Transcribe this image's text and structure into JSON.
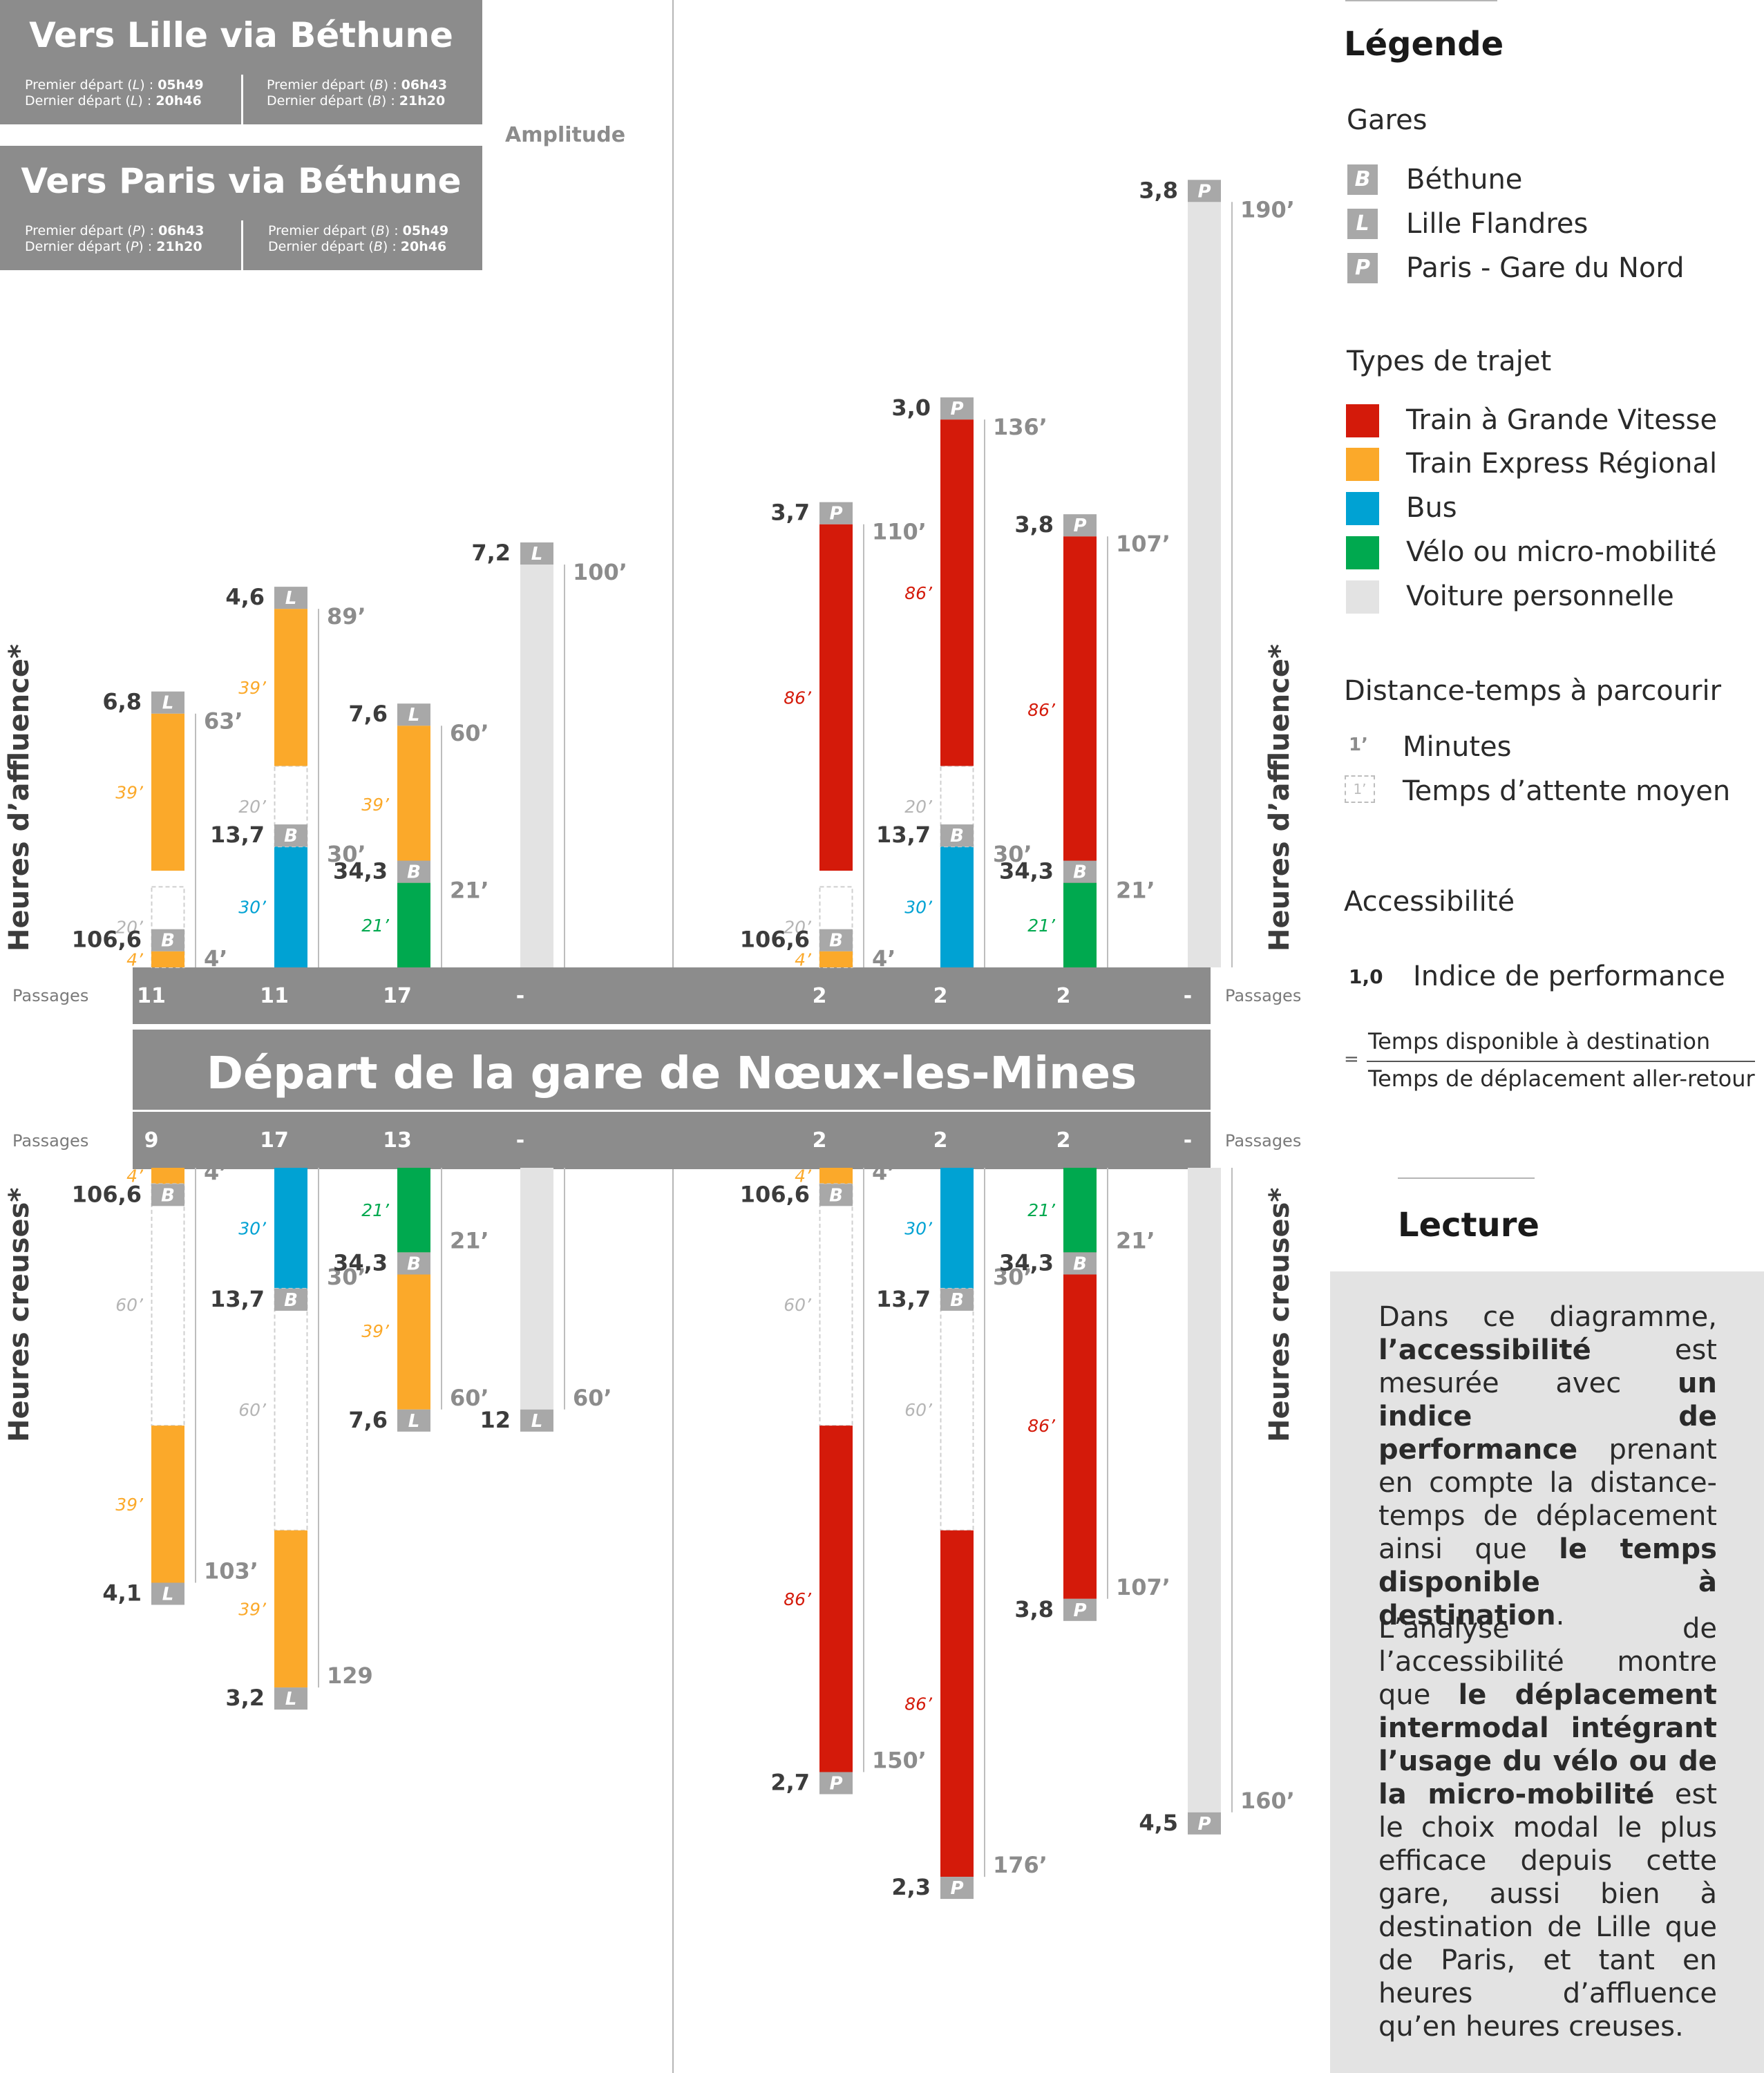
{
  "header_lille": {
    "title": "Vers Lille via Béthune",
    "left_line1_prefix": "Premier départ (",
    "left_line1_station": "L",
    "left_line1_suffix": ") : ",
    "left_line1_time": "05h49",
    "left_line2_prefix": "Dernier départ (",
    "left_line2_station": "L",
    "left_line2_suffix": ") : ",
    "left_line2_time": "20h46",
    "right_line1_prefix": "Premier départ (",
    "right_line1_station": "B",
    "right_line1_suffix": ") : ",
    "right_line1_time": "06h43",
    "right_line2_prefix": "Dernier départ (",
    "right_line2_station": "B",
    "right_line2_suffix": ") : ",
    "right_line2_time": "21h20"
  },
  "header_paris": {
    "title": "Vers Paris via Béthune",
    "left_line1_prefix": "Premier départ (",
    "left_line1_station": "P",
    "left_line1_suffix": ") : ",
    "left_line1_time": "06h43",
    "left_line2_prefix": "Dernier départ (",
    "left_line2_station": "P",
    "left_line2_suffix": ") : ",
    "left_line2_time": "21h20",
    "right_line1_prefix": "Premier départ (",
    "right_line1_station": "B",
    "right_line1_suffix": ") : ",
    "right_line1_time": "05h49",
    "right_line2_prefix": "Dernier départ (",
    "right_line2_station": "B",
    "right_line2_suffix": ") : ",
    "right_line2_time": "20h46"
  },
  "amplitude_label": "Amplitude",
  "center_title": "Départ de la gare de Nœux-les-Mines",
  "passages_label": "Passages",
  "side_labels": {
    "peak": "Heures d’affluence*",
    "offpeak": "Heures creuses*"
  },
  "passages_top": [
    "11",
    "11",
    "17",
    "-",
    "2",
    "2",
    "2",
    "-"
  ],
  "passages_bottom": [
    "9",
    "17",
    "13",
    "-",
    "2",
    "2",
    "2",
    "-"
  ],
  "colors": {
    "tgv": "#d41a0a",
    "ter": "#fba92a",
    "bus": "#00a2d3",
    "velo": "#00a94f",
    "voiture": "#e3e3e3",
    "station": "#a8a8a8",
    "band": "#8c8c8c"
  },
  "legend": {
    "title": "Légende",
    "gares_title": "Gares",
    "gares": [
      {
        "code": "B",
        "label": "Béthune"
      },
      {
        "code": "L",
        "label": "Lille Flandres"
      },
      {
        "code": "P",
        "label": "Paris - Gare du Nord"
      }
    ],
    "types_title": "Types de trajet",
    "types": [
      {
        "label": "Train à Grande Vitesse",
        "color": "#d41a0a"
      },
      {
        "label": "Train Express Régional",
        "color": "#fba92a"
      },
      {
        "label": "Bus",
        "color": "#00a2d3"
      },
      {
        "label": "Vélo ou micro-mobilité",
        "color": "#00a94f"
      },
      {
        "label": "Voiture personnelle",
        "color": "#e3e3e3"
      }
    ],
    "distance_title": "Distance-temps à parcourir",
    "minutes_sample": "1’",
    "minutes_label": "Minutes",
    "wait_sample": "1’",
    "wait_label": "Temps d’attente moyen",
    "access_title": "Accessibilité",
    "index_sample": "1,0",
    "index_label": "Indice de performance",
    "eq": "=",
    "numerator": "Temps disponible à destination",
    "denominator": "Temps de déplacement aller-retour"
  },
  "lecture": {
    "title": "Lecture",
    "p1_a": "Dans ce diagramme, ",
    "p1_b": "l’accessibilité",
    "p1_c": " est mesurée avec ",
    "p1_d": "un indice de performance",
    "p1_e": " prenant en compte la distance-temps de déplacement ainsi que ",
    "p1_f": "le temps disponible à destination",
    "p1_g": ".",
    "p2_a": "L’analyse de l’accessibilité montre que ",
    "p2_b": "le déplacement intermodal intégrant l’usage du vélo ou de la micro-mobilité",
    "p2_c": " est le choix modal le plus efficace depuis cette gare, aussi bien à destination de Lille que de Paris, et tant en heures d’affluence qu’en heures creuses."
  },
  "chart_data": {
    "type": "table",
    "top_columns": [
      {
        "bars": [
          {
            "kind": "wait",
            "from": 0,
            "to": 20,
            "label": "20’"
          },
          {
            "kind": "ter",
            "from": 0,
            "to": 4,
            "label": "4’"
          },
          {
            "kind": "ter",
            "from": 24,
            "to": 63,
            "label": "39’"
          }
        ],
        "stations": [
          {
            "code": "B",
            "at": 4,
            "index": "106,6"
          },
          {
            "code": "L",
            "at": 63,
            "index": "6,8"
          }
        ],
        "totals": [
          {
            "at": 4,
            "label": "4’"
          },
          {
            "at": 63,
            "label": "63’"
          }
        ]
      },
      {
        "bars": [
          {
            "kind": "bus",
            "from": 0,
            "to": 30,
            "label": "30’"
          },
          {
            "kind": "wait",
            "from": 30,
            "to": 50,
            "label": "20’"
          },
          {
            "kind": "ter",
            "from": 50,
            "to": 89,
            "label": "39’"
          }
        ],
        "stations": [
          {
            "code": "B",
            "at": 30,
            "index": "13,7"
          },
          {
            "code": "L",
            "at": 89,
            "index": "4,6"
          }
        ],
        "totals": [
          {
            "at": 30,
            "label": "30’"
          },
          {
            "at": 89,
            "label": "89’"
          }
        ]
      },
      {
        "bars": [
          {
            "kind": "velo",
            "from": 0,
            "to": 21,
            "label": "21’"
          },
          {
            "kind": "ter",
            "from": 21,
            "to": 60,
            "label": "39’"
          }
        ],
        "stations": [
          {
            "code": "B",
            "at": 21,
            "index": "34,3"
          },
          {
            "code": "L",
            "at": 60,
            "index": "7,6"
          }
        ],
        "totals": [
          {
            "at": 21,
            "label": "21’"
          },
          {
            "at": 60,
            "label": "60’"
          }
        ]
      },
      {
        "bars": [
          {
            "kind": "voiture",
            "from": 0,
            "to": 100
          }
        ],
        "stations": [
          {
            "code": "L",
            "at": 100,
            "index": "7,2"
          }
        ],
        "totals": [
          {
            "at": 100,
            "label": "100’"
          }
        ]
      },
      {
        "bars": [
          {
            "kind": "wait",
            "from": 0,
            "to": 20,
            "label": "20’"
          },
          {
            "kind": "ter",
            "from": 0,
            "to": 4,
            "label": "4’"
          },
          {
            "kind": "tgv",
            "from": 24,
            "to": 110,
            "label": "86’"
          }
        ],
        "stations": [
          {
            "code": "B",
            "at": 4,
            "index": "106,6"
          },
          {
            "code": "P",
            "at": 110,
            "index": "3,7"
          }
        ],
        "totals": [
          {
            "at": 4,
            "label": "4’"
          },
          {
            "at": 110,
            "label": "110’"
          }
        ]
      },
      {
        "bars": [
          {
            "kind": "bus",
            "from": 0,
            "to": 30,
            "label": "30’"
          },
          {
            "kind": "wait",
            "from": 30,
            "to": 50,
            "label": "20’"
          },
          {
            "kind": "tgv",
            "from": 50,
            "to": 136,
            "label": "86’"
          }
        ],
        "stations": [
          {
            "code": "B",
            "at": 30,
            "index": "13,7"
          },
          {
            "code": "P",
            "at": 136,
            "index": "3,0"
          }
        ],
        "totals": [
          {
            "at": 30,
            "label": "30’"
          },
          {
            "at": 136,
            "label": "136’"
          }
        ]
      },
      {
        "bars": [
          {
            "kind": "velo",
            "from": 0,
            "to": 21,
            "label": "21’"
          },
          {
            "kind": "tgv",
            "from": 21,
            "to": 107,
            "label": "86’"
          }
        ],
        "stations": [
          {
            "code": "B",
            "at": 21,
            "index": "34,3"
          },
          {
            "code": "P",
            "at": 107,
            "index": "3,8"
          }
        ],
        "totals": [
          {
            "at": 21,
            "label": "21’"
          },
          {
            "at": 107,
            "label": "107’"
          }
        ]
      },
      {
        "bars": [
          {
            "kind": "voiture",
            "from": 0,
            "to": 190
          }
        ],
        "stations": [
          {
            "code": "P",
            "at": 190,
            "index": "3,8"
          }
        ],
        "totals": [
          {
            "at": 190,
            "label": "190’"
          }
        ]
      }
    ],
    "bottom_columns": [
      {
        "bars": [
          {
            "kind": "ter",
            "from": 0,
            "to": 4,
            "label": "4’"
          },
          {
            "kind": "wait",
            "from": 4,
            "to": 64,
            "label": "60’"
          },
          {
            "kind": "ter",
            "from": 64,
            "to": 103,
            "label": "39’"
          }
        ],
        "stations": [
          {
            "code": "B",
            "at": 4,
            "index": "106,6"
          },
          {
            "code": "L",
            "at": 103,
            "index": "4,1"
          }
        ],
        "totals": [
          {
            "at": 4,
            "label": "4’"
          },
          {
            "at": 103,
            "label": "103’"
          }
        ]
      },
      {
        "bars": [
          {
            "kind": "bus",
            "from": 0,
            "to": 30,
            "label": "30’"
          },
          {
            "kind": "wait",
            "from": 30,
            "to": 90,
            "label": "60’"
          },
          {
            "kind": "ter",
            "from": 90,
            "to": 129,
            "label": "39’"
          }
        ],
        "stations": [
          {
            "code": "B",
            "at": 30,
            "index": "13,7"
          },
          {
            "code": "L",
            "at": 129,
            "index": "3,2"
          }
        ],
        "totals": [
          {
            "at": 30,
            "label": "30’"
          },
          {
            "at": 129,
            "label": "129"
          }
        ]
      },
      {
        "bars": [
          {
            "kind": "velo",
            "from": 0,
            "to": 21,
            "label": "21’"
          },
          {
            "kind": "ter",
            "from": 21,
            "to": 60,
            "label": "39’"
          }
        ],
        "stations": [
          {
            "code": "B",
            "at": 21,
            "index": "34,3"
          },
          {
            "code": "L",
            "at": 60,
            "index": "7,6"
          }
        ],
        "totals": [
          {
            "at": 21,
            "label": "21’"
          },
          {
            "at": 60,
            "label": "60’"
          }
        ]
      },
      {
        "bars": [
          {
            "kind": "voiture",
            "from": 0,
            "to": 60
          }
        ],
        "stations": [
          {
            "code": "L",
            "at": 60,
            "index": "12"
          }
        ],
        "totals": [
          {
            "at": 60,
            "label": "60’"
          }
        ]
      },
      {
        "bars": [
          {
            "kind": "ter",
            "from": 0,
            "to": 4,
            "label": "4’"
          },
          {
            "kind": "wait",
            "from": 4,
            "to": 64,
            "label": "60’"
          },
          {
            "kind": "tgv",
            "from": 64,
            "to": 150,
            "label": "86’"
          }
        ],
        "stations": [
          {
            "code": "B",
            "at": 4,
            "index": "106,6"
          },
          {
            "code": "P",
            "at": 150,
            "index": "2,7"
          }
        ],
        "totals": [
          {
            "at": 4,
            "label": "4’"
          },
          {
            "at": 150,
            "label": "150’"
          }
        ]
      },
      {
        "bars": [
          {
            "kind": "bus",
            "from": 0,
            "to": 30,
            "label": "30’"
          },
          {
            "kind": "wait",
            "from": 30,
            "to": 90,
            "label": "60’"
          },
          {
            "kind": "tgv",
            "from": 90,
            "to": 176,
            "label": "86’"
          }
        ],
        "stations": [
          {
            "code": "B",
            "at": 30,
            "index": "13,7"
          },
          {
            "code": "P",
            "at": 176,
            "index": "2,3"
          }
        ],
        "totals": [
          {
            "at": 30,
            "label": "30’"
          },
          {
            "at": 176,
            "label": "176’"
          }
        ]
      },
      {
        "bars": [
          {
            "kind": "velo",
            "from": 0,
            "to": 21,
            "label": "21’"
          },
          {
            "kind": "tgv",
            "from": 21,
            "to": 107,
            "label": "86’"
          }
        ],
        "stations": [
          {
            "code": "B",
            "at": 21,
            "index": "34,3"
          },
          {
            "code": "P",
            "at": 107,
            "index": "3,8"
          }
        ],
        "totals": [
          {
            "at": 21,
            "label": "21’"
          },
          {
            "at": 107,
            "label": "107’"
          }
        ]
      },
      {
        "bars": [
          {
            "kind": "voiture",
            "from": 0,
            "to": 160
          }
        ],
        "stations": [
          {
            "code": "P",
            "at": 160,
            "index": "4,5"
          }
        ],
        "totals": [
          {
            "at": 160,
            "label": "160’"
          }
        ]
      }
    ]
  }
}
